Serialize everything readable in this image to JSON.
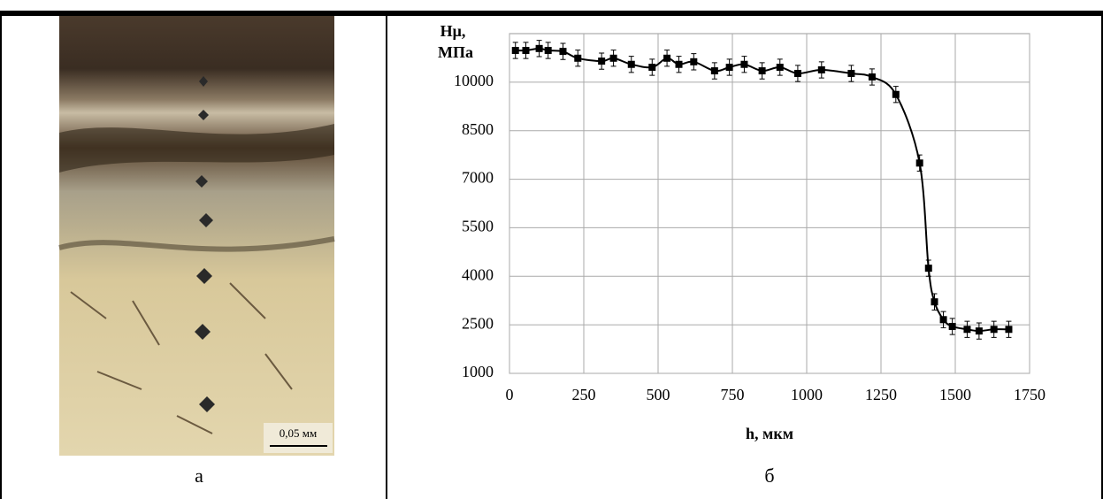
{
  "figure_a": {
    "scale_label": "0,05 мм",
    "caption": "а"
  },
  "figure_b": {
    "caption": "б"
  },
  "chart_data": {
    "type": "line",
    "y_label": [
      "Hμ,",
      "МПа"
    ],
    "x_label": "h, мкм",
    "xlim": [
      0,
      1750
    ],
    "xticks": [
      0,
      250,
      500,
      750,
      1000,
      1250,
      1500,
      1750
    ],
    "ylim": [
      1000,
      11500
    ],
    "yticks": [
      1000,
      2500,
      4000,
      5500,
      7000,
      8500,
      10000
    ],
    "grid": true,
    "error": 250,
    "series": [
      {
        "color": "#000000",
        "x": [
          20,
          55,
          100,
          130,
          180,
          230,
          310,
          350,
          410,
          480,
          530,
          570,
          620,
          690,
          740,
          790,
          850,
          910,
          970,
          1050,
          1150,
          1220,
          1300,
          1380,
          1410,
          1430,
          1460,
          1490,
          1540,
          1580,
          1630,
          1680
        ],
        "values": [
          10980,
          10980,
          11040,
          10980,
          10950,
          10740,
          10650,
          10740,
          10550,
          10460,
          10740,
          10550,
          10630,
          10350,
          10460,
          10550,
          10350,
          10460,
          10270,
          10380,
          10270,
          10160,
          9620,
          7500,
          4250,
          3210,
          2660,
          2450,
          2360,
          2310,
          2360,
          2360
        ]
      }
    ]
  }
}
